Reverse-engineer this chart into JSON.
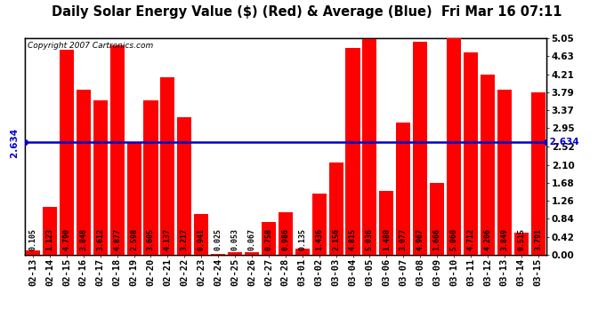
{
  "title": "Daily Solar Energy Value ($) (Red) & Average (Blue)  Fri Mar 16 07:11",
  "copyright": "Copyright 2007 Cartronics.com",
  "average": 2.634,
  "categories": [
    "02-13",
    "02-14",
    "02-15",
    "02-16",
    "02-17",
    "02-18",
    "02-19",
    "02-20",
    "02-21",
    "02-22",
    "02-23",
    "02-24",
    "02-25",
    "02-26",
    "02-27",
    "02-28",
    "03-01",
    "03-02",
    "03-03",
    "03-04",
    "03-05",
    "03-06",
    "03-07",
    "03-08",
    "03-09",
    "03-10",
    "03-11",
    "03-12",
    "03-13",
    "03-14",
    "03-15"
  ],
  "values": [
    0.105,
    1.123,
    4.79,
    3.848,
    3.612,
    4.877,
    2.598,
    3.605,
    4.137,
    3.217,
    0.941,
    0.025,
    0.053,
    0.067,
    0.758,
    0.986,
    0.135,
    1.436,
    2.156,
    4.815,
    5.036,
    1.48,
    3.077,
    4.967,
    1.666,
    5.06,
    4.712,
    4.206,
    3.849,
    0.515,
    3.791
  ],
  "bar_color": "#ff0000",
  "avg_line_color": "#0000cc",
  "background_color": "#ffffff",
  "plot_bg_color": "#ffffff",
  "grid_color": "#c8c8c8",
  "ylim": [
    0,
    5.05
  ],
  "yticks_right": [
    0.0,
    0.42,
    0.84,
    1.26,
    1.68,
    2.1,
    2.52,
    2.95,
    3.37,
    3.79,
    4.21,
    4.63,
    5.05
  ],
  "title_fontsize": 10.5,
  "copyright_fontsize": 6.5,
  "tick_fontsize": 7.5,
  "bar_label_fontsize": 6.0
}
